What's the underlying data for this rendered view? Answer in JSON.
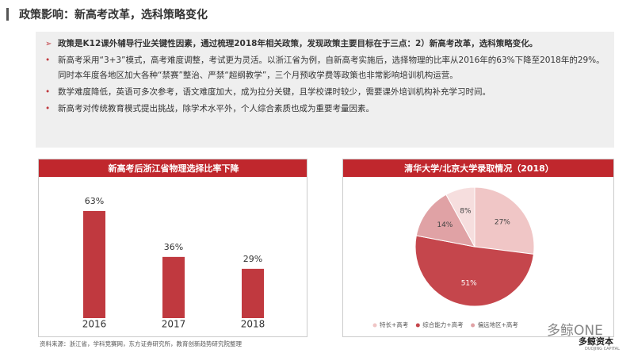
{
  "header": {
    "title": "政策影响：新高考改革，选科策略变化"
  },
  "bullets": [
    "政策是K12课外辅导行业关键性因素，通过梳理2018年相关政策，发现政策主要目标在于三点：2）新高考改革，选科策略变化。",
    "新高考采用“3+3”模式，高考难度调整，考试更为灵活。以浙江省为例，自新高考实施后，选择物理的比率从2016年的63%下降至2018年的29%。同时本年度各地区加大各种“禁赛”整治、严禁“超纲教学”，三个月预收学费等政策也非常影响培训机构运营。",
    "数学难度降低，英语可多次参考，语文难度加大，成为拉分关键，且学校课时较少，需要课外培训机构补充学习时间。",
    "新高考对传统教育模式提出挑战，除学术水平外，个人综合素质也成为重要考量因素。"
  ],
  "source": "资料来源：浙江省，学科竞赛网，东方证券研究所，教育创新趋势研究院整理",
  "watermark": "多鲸ONE",
  "logo": {
    "name": "多鲸资本",
    "sub": "DUOJING CAPITAL"
  },
  "chart_data": [
    {
      "type": "bar",
      "title": "新高考后浙江省物理选择比率下降",
      "categories": [
        "2016",
        "2017",
        "2018"
      ],
      "values": [
        63,
        36,
        29
      ],
      "value_labels": [
        "63%",
        "36%",
        "29%"
      ],
      "color": "#c0393f"
    },
    {
      "type": "pie",
      "title": "清华大学/北京大学录取情况（2018）",
      "categories": [
        "特长+高考",
        "综合能力+高考",
        "偏远地区+高考",
        null
      ],
      "values": [
        27,
        51,
        14,
        8
      ],
      "value_labels": [
        "27%",
        "51%",
        "14%",
        "8%"
      ],
      "colors": [
        "#f0c6c6",
        "#c5464c",
        "#e0a2a5",
        "#f6dede"
      ]
    }
  ]
}
